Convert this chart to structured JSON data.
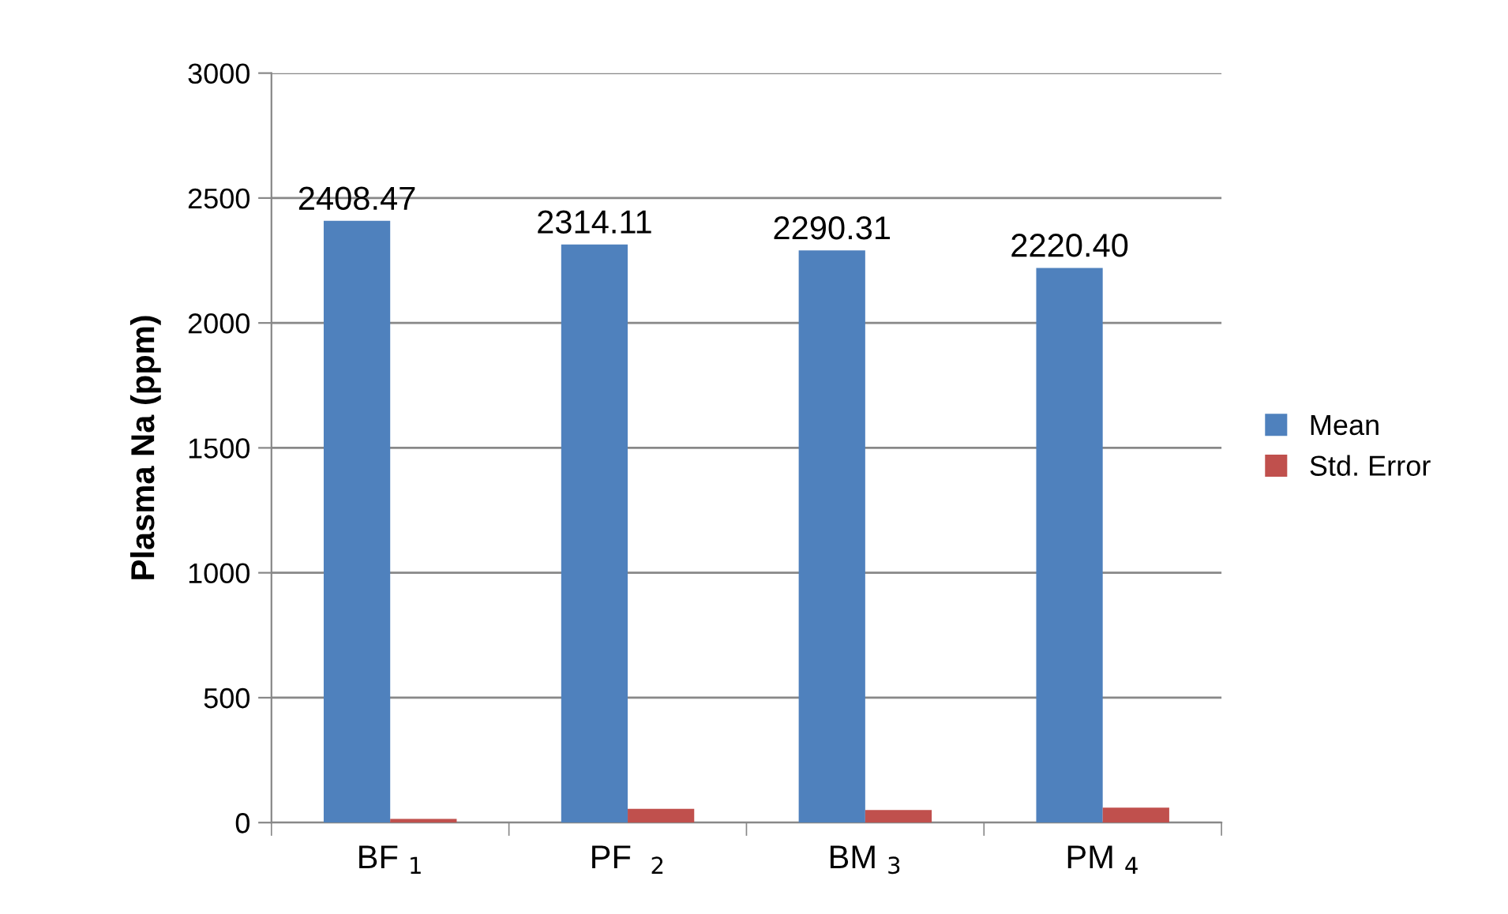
{
  "chart_data": {
    "type": "bar",
    "ylabel": "Plasma Na (ppm)",
    "categories": [
      "BF $_{1}$",
      "PF  $_{2}$",
      "BM $_{3}$",
      "PM $_{4}$"
    ],
    "series": [
      {
        "name": "Mean",
        "color": "#4f81bd",
        "values": [
          2408.47,
          2314.11,
          2290.31,
          2220.4
        ],
        "value_labels": [
          "2408.47",
          "2314.11",
          "2290.31",
          "2220.40"
        ]
      },
      {
        "name": "Std. Error",
        "color": "#c0504d",
        "values": [
          15,
          55,
          50,
          60
        ]
      }
    ],
    "ylim": [
      0,
      3000
    ],
    "yticks": [
      0,
      500,
      1000,
      1500,
      2000,
      2500,
      3000
    ],
    "grid": "y",
    "legend": "right"
  }
}
